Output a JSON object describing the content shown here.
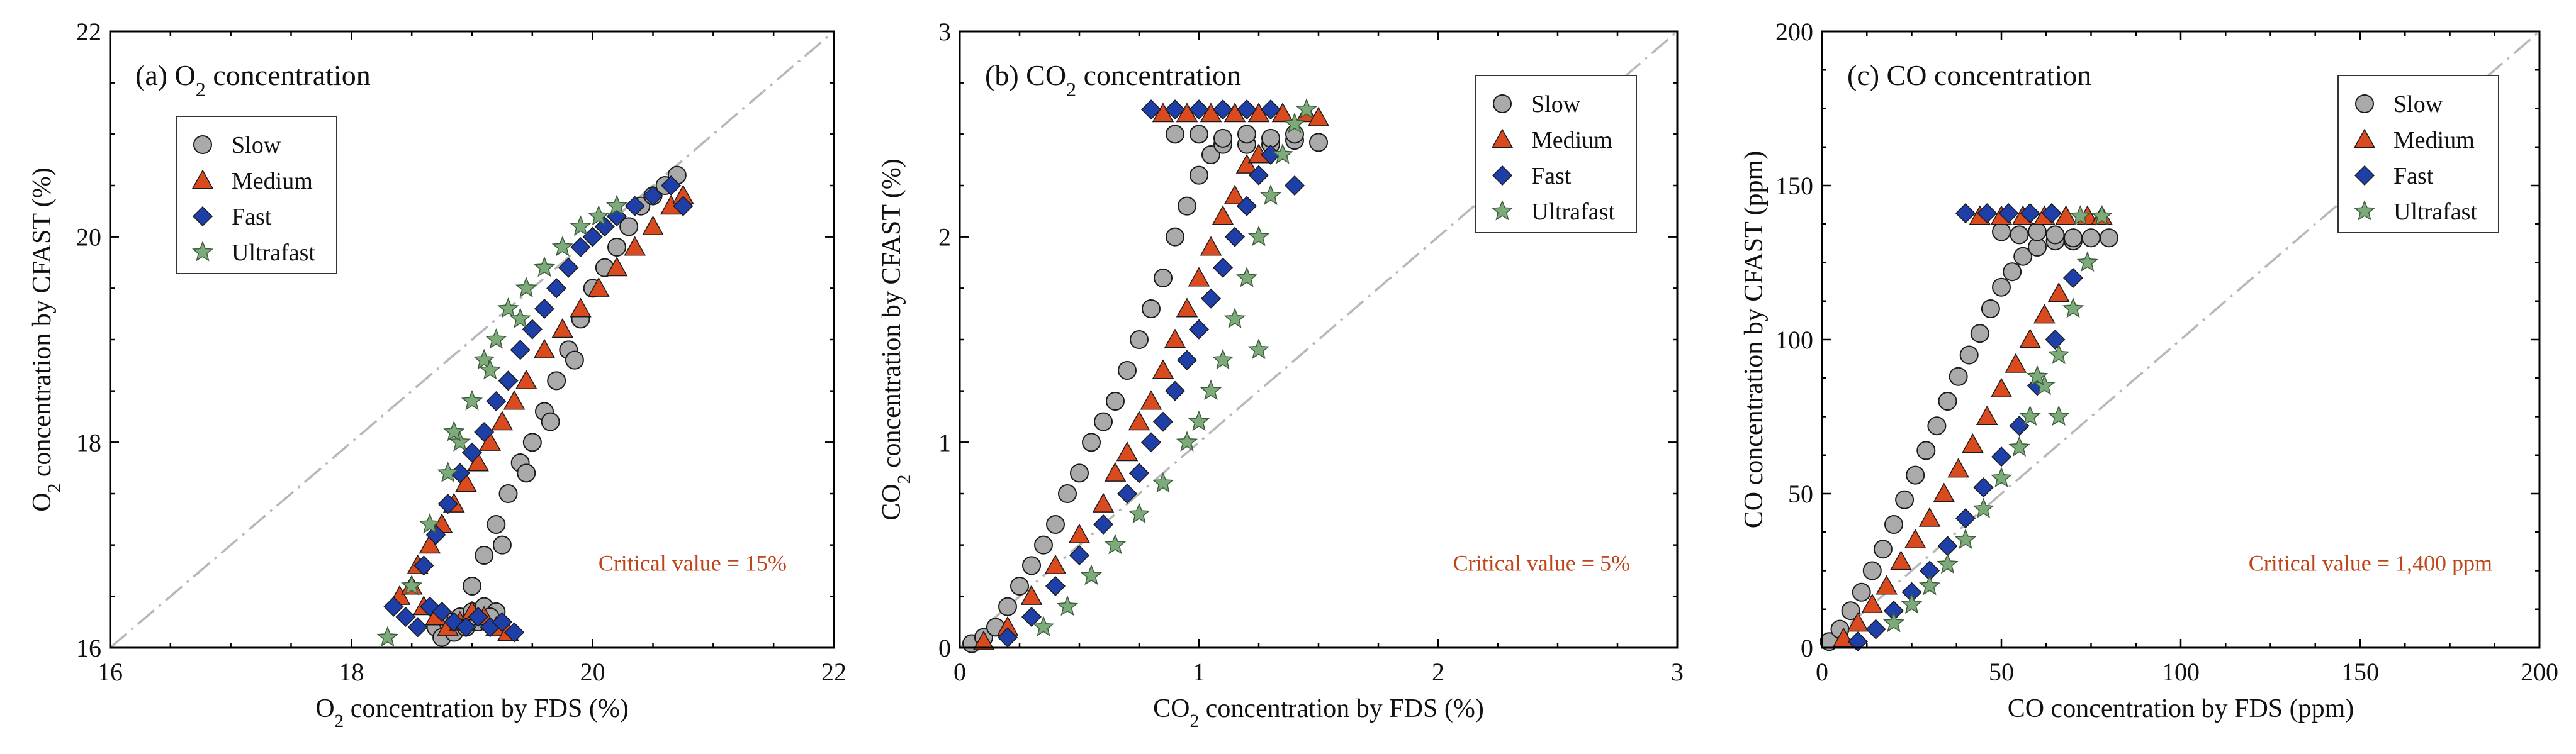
{
  "colors": {
    "slow": "#aaaaaa",
    "medium": "#d94a1e",
    "fast": "#1f3fa8",
    "ultrafast": "#7daa7a",
    "critical": "#c0441a",
    "reference": "#b8b8b8"
  },
  "chart_data": [
    {
      "type": "scatter",
      "title_prefix": "(a) O",
      "title_sub": "2",
      "title_suffix": " concentration",
      "xlabel_prefix": "O",
      "xlabel_sub": "2",
      "xlabel_suffix": " concentration by FDS (%)",
      "ylabel_prefix": "O",
      "ylabel_sub": "2",
      "ylabel_suffix": " concentration  by CFAST (%)",
      "xlim": [
        16,
        22
      ],
      "ylim": [
        16,
        22
      ],
      "xticks": [
        16,
        18,
        20,
        22
      ],
      "yticks": [
        16,
        18,
        20,
        22
      ],
      "legend_position": "upper-left",
      "critical_text": "Critical value = 15%",
      "legend": [
        "Slow",
        "Medium",
        "Fast",
        "Ultrafast"
      ],
      "series": [
        {
          "name": "Slow",
          "marker": "circle",
          "x": [
            18.7,
            18.8,
            18.9,
            19.0,
            19.1,
            19.2,
            18.75,
            18.85,
            18.95,
            19.05,
            19.15,
            19.0,
            19.1,
            19.2,
            19.3,
            19.4,
            19.5,
            19.6,
            19.7,
            19.8,
            19.9,
            20.0,
            20.1,
            20.2,
            20.3,
            20.4,
            20.5,
            20.6,
            20.7,
            19.25,
            19.45,
            19.65,
            19.85
          ],
          "y": [
            16.2,
            16.25,
            16.3,
            16.35,
            16.4,
            16.35,
            16.1,
            16.15,
            16.2,
            16.25,
            16.3,
            16.6,
            16.9,
            17.2,
            17.5,
            17.8,
            18.0,
            18.3,
            18.6,
            18.9,
            19.2,
            19.5,
            19.7,
            19.9,
            20.1,
            20.3,
            20.4,
            20.5,
            20.6,
            17.0,
            17.7,
            18.2,
            18.8
          ]
        },
        {
          "name": "Medium",
          "marker": "triangle",
          "x": [
            18.4,
            18.5,
            18.6,
            18.7,
            18.8,
            18.9,
            19.0,
            19.1,
            19.2,
            19.3,
            18.55,
            18.65,
            18.75,
            18.85,
            18.95,
            19.05,
            19.15,
            19.25,
            19.35,
            19.45,
            19.6,
            19.75,
            19.9,
            20.05,
            20.2,
            20.35,
            20.5,
            20.65,
            20.75
          ],
          "y": [
            16.5,
            16.6,
            16.4,
            16.3,
            16.2,
            16.25,
            16.35,
            16.3,
            16.2,
            16.15,
            16.8,
            17.0,
            17.2,
            17.4,
            17.6,
            17.8,
            18.0,
            18.2,
            18.4,
            18.6,
            18.9,
            19.1,
            19.3,
            19.5,
            19.7,
            19.9,
            20.1,
            20.3,
            20.4
          ]
        },
        {
          "name": "Fast",
          "marker": "diamond",
          "x": [
            18.35,
            18.45,
            18.55,
            18.65,
            18.75,
            18.85,
            18.95,
            19.05,
            19.15,
            19.25,
            19.35,
            18.6,
            18.7,
            18.8,
            18.9,
            19.0,
            19.1,
            19.2,
            19.3,
            19.4,
            19.5,
            19.6,
            19.7,
            19.8,
            19.9,
            20.0,
            20.1,
            20.2,
            20.35,
            20.5,
            20.65,
            20.75
          ],
          "y": [
            16.4,
            16.3,
            16.2,
            16.4,
            16.35,
            16.25,
            16.2,
            16.3,
            16.2,
            16.25,
            16.15,
            16.8,
            17.1,
            17.4,
            17.7,
            17.9,
            18.1,
            18.4,
            18.6,
            18.9,
            19.1,
            19.3,
            19.5,
            19.7,
            19.9,
            20.0,
            20.1,
            20.2,
            20.3,
            20.4,
            20.5,
            20.3
          ]
        },
        {
          "name": "Ultrafast",
          "marker": "star",
          "x": [
            18.3,
            18.5,
            18.65,
            18.8,
            18.9,
            19.0,
            19.1,
            19.2,
            19.3,
            19.45,
            19.6,
            19.75,
            19.9,
            20.05,
            20.2,
            18.85,
            19.15,
            19.4
          ],
          "y": [
            16.1,
            16.6,
            17.2,
            17.7,
            18.0,
            18.4,
            18.8,
            19.0,
            19.3,
            19.5,
            19.7,
            19.9,
            20.1,
            20.2,
            20.3,
            18.1,
            18.7,
            19.2
          ]
        }
      ]
    },
    {
      "type": "scatter",
      "title_prefix": "(b) CO",
      "title_sub": "2",
      "title_suffix": " concentration",
      "xlabel_prefix": "CO",
      "xlabel_sub": "2",
      "xlabel_suffix": " concentration by FDS (%)",
      "ylabel_prefix": "CO",
      "ylabel_sub": "2",
      "ylabel_suffix": " concentration by CFAST (%)",
      "xlim": [
        0,
        3
      ],
      "ylim": [
        0,
        3
      ],
      "xticks": [
        0,
        1,
        2,
        3
      ],
      "yticks": [
        0,
        1,
        2,
        3
      ],
      "legend_position": "upper-right",
      "critical_text": "Critical value = 5%",
      "legend": [
        "Slow",
        "Medium",
        "Fast",
        "Ultrafast"
      ],
      "series": [
        {
          "name": "Slow",
          "marker": "circle",
          "x": [
            0.05,
            0.1,
            0.15,
            0.2,
            0.25,
            0.3,
            0.35,
            0.4,
            0.45,
            0.5,
            0.55,
            0.6,
            0.65,
            0.7,
            0.75,
            0.8,
            0.85,
            0.9,
            0.95,
            1.0,
            1.05,
            1.1,
            1.2,
            1.3,
            1.4,
            1.5,
            0.9,
            1.0,
            1.1,
            1.2,
            1.3,
            1.4
          ],
          "y": [
            0.02,
            0.05,
            0.1,
            0.2,
            0.3,
            0.4,
            0.5,
            0.6,
            0.75,
            0.85,
            1.0,
            1.1,
            1.2,
            1.35,
            1.5,
            1.65,
            1.8,
            2.0,
            2.15,
            2.3,
            2.4,
            2.45,
            2.45,
            2.45,
            2.47,
            2.46,
            2.5,
            2.5,
            2.48,
            2.5,
            2.48,
            2.5
          ]
        },
        {
          "name": "Medium",
          "marker": "triangle",
          "x": [
            0.1,
            0.2,
            0.3,
            0.4,
            0.5,
            0.6,
            0.65,
            0.7,
            0.75,
            0.8,
            0.85,
            0.9,
            0.95,
            1.0,
            1.05,
            1.1,
            1.15,
            1.2,
            1.25,
            0.85,
            0.95,
            1.05,
            1.15,
            1.25,
            1.35,
            1.45,
            1.5
          ],
          "y": [
            0.03,
            0.1,
            0.25,
            0.4,
            0.55,
            0.7,
            0.85,
            0.95,
            1.1,
            1.2,
            1.35,
            1.5,
            1.65,
            1.8,
            1.95,
            2.1,
            2.2,
            2.35,
            2.4,
            2.6,
            2.6,
            2.6,
            2.6,
            2.6,
            2.6,
            2.6,
            2.58
          ]
        },
        {
          "name": "Fast",
          "marker": "diamond",
          "x": [
            0.2,
            0.3,
            0.4,
            0.5,
            0.6,
            0.7,
            0.75,
            0.8,
            0.85,
            0.9,
            0.95,
            1.0,
            1.05,
            1.1,
            1.15,
            1.2,
            1.25,
            1.3,
            1.4,
            0.8,
            0.9,
            1.0,
            1.1,
            1.2,
            1.3
          ],
          "y": [
            0.05,
            0.15,
            0.3,
            0.45,
            0.6,
            0.75,
            0.85,
            1.0,
            1.1,
            1.25,
            1.4,
            1.55,
            1.7,
            1.85,
            2.0,
            2.15,
            2.3,
            2.4,
            2.25,
            2.62,
            2.62,
            2.62,
            2.62,
            2.62,
            2.62
          ]
        },
        {
          "name": "Ultrafast",
          "marker": "star",
          "x": [
            0.35,
            0.45,
            0.55,
            0.65,
            0.75,
            0.85,
            0.95,
            1.0,
            1.05,
            1.1,
            1.15,
            1.2,
            1.25,
            1.3,
            1.35,
            1.4,
            1.45,
            1.25
          ],
          "y": [
            0.1,
            0.2,
            0.35,
            0.5,
            0.65,
            0.8,
            1.0,
            1.1,
            1.25,
            1.4,
            1.6,
            1.8,
            2.0,
            2.2,
            2.4,
            2.55,
            2.62,
            1.45
          ]
        }
      ]
    },
    {
      "type": "scatter",
      "title_prefix": "(c) CO concentration",
      "title_sub": "",
      "title_suffix": "",
      "xlabel_prefix": "CO concentration by FDS (ppm)",
      "xlabel_sub": "",
      "xlabel_suffix": "",
      "ylabel_prefix": "CO concentration by CFAST (ppm)",
      "ylabel_sub": "",
      "ylabel_suffix": "",
      "xlim": [
        0,
        200
      ],
      "ylim": [
        0,
        200
      ],
      "xticks": [
        0,
        50,
        100,
        150,
        200
      ],
      "yticks": [
        0,
        50,
        100,
        150,
        200
      ],
      "legend_position": "upper-right",
      "critical_text": "Critical value = 1,400 ppm",
      "legend": [
        "Slow",
        "Medium",
        "Fast",
        "Ultrafast"
      ],
      "series": [
        {
          "name": "Slow",
          "marker": "circle",
          "x": [
            2,
            5,
            8,
            11,
            14,
            17,
            20,
            23,
            26,
            29,
            32,
            35,
            38,
            41,
            44,
            47,
            50,
            53,
            56,
            60,
            65,
            70,
            75,
            80,
            50,
            55,
            60,
            65,
            70
          ],
          "y": [
            2,
            6,
            12,
            18,
            25,
            32,
            40,
            48,
            56,
            64,
            72,
            80,
            88,
            95,
            102,
            110,
            117,
            122,
            127,
            130,
            132,
            132,
            133,
            133,
            135,
            134,
            135,
            134,
            133
          ]
        },
        {
          "name": "Medium",
          "marker": "triangle",
          "x": [
            6,
            10,
            14,
            18,
            22,
            26,
            30,
            34,
            38,
            42,
            46,
            50,
            54,
            58,
            62,
            66,
            44,
            50,
            56,
            62,
            68,
            74,
            78
          ],
          "y": [
            3,
            8,
            14,
            20,
            28,
            35,
            42,
            50,
            58,
            66,
            75,
            84,
            92,
            100,
            108,
            115,
            140,
            140,
            140,
            140,
            140,
            140,
            140
          ]
        },
        {
          "name": "Fast",
          "marker": "diamond",
          "x": [
            10,
            15,
            20,
            25,
            30,
            35,
            40,
            45,
            50,
            55,
            60,
            65,
            70,
            40,
            46,
            52,
            58,
            64
          ],
          "y": [
            2,
            6,
            12,
            18,
            25,
            33,
            42,
            52,
            62,
            72,
            85,
            100,
            120,
            141,
            141,
            141,
            141,
            141
          ]
        },
        {
          "name": "Ultrafast",
          "marker": "star",
          "x": [
            20,
            25,
            30,
            35,
            40,
            45,
            50,
            55,
            58,
            62,
            66,
            70,
            74,
            78,
            60,
            66,
            72
          ],
          "y": [
            8,
            14,
            20,
            27,
            35,
            45,
            55,
            65,
            75,
            85,
            95,
            110,
            125,
            140,
            88,
            75,
            140
          ]
        }
      ]
    }
  ]
}
